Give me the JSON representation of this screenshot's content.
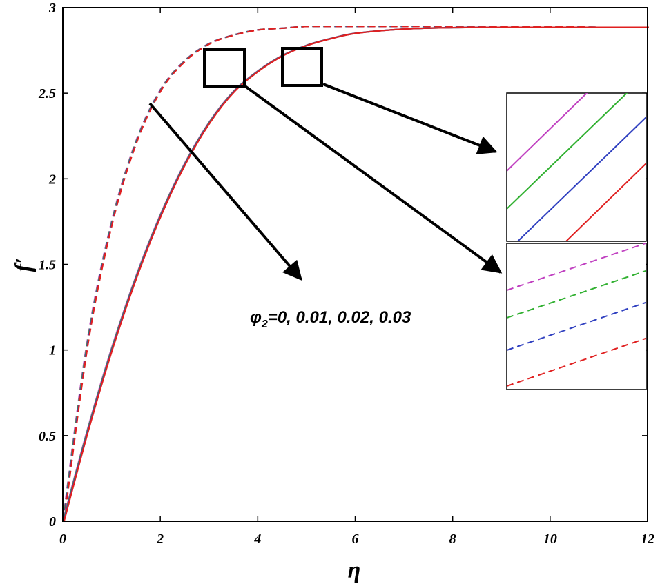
{
  "chart_data": {
    "type": "line",
    "title": "",
    "xlabel": "η",
    "ylabel": "f′",
    "xlim": [
      0,
      12
    ],
    "ylim": [
      0,
      3
    ],
    "xticks": [
      "0",
      "2",
      "4",
      "6",
      "8",
      "10",
      "12"
    ],
    "yticks": [
      "0",
      "0.5",
      "1",
      "1.5",
      "2",
      "2.5",
      "3"
    ],
    "grid": false,
    "annotation": {
      "symbol": "φ",
      "subscript": "2",
      "text": "=0, 0.01, 0.02, 0.03"
    },
    "x": [
      0,
      0.5,
      1,
      1.5,
      2,
      2.5,
      3,
      3.5,
      4,
      4.5,
      5,
      5.5,
      6,
      7,
      8,
      9,
      10,
      11,
      12
    ],
    "series": [
      {
        "style": "dashed",
        "values": [
          0,
          1.05,
          1.75,
          2.22,
          2.52,
          2.69,
          2.79,
          2.84,
          2.87,
          2.88,
          2.89,
          2.89,
          2.89,
          2.89,
          2.89,
          2.89,
          2.89,
          2.885,
          2.885
        ],
        "colors": [
          "#c040c0",
          "#30b030",
          "#3040c0",
          "#e02020"
        ]
      },
      {
        "style": "solid",
        "values": [
          0,
          0.53,
          1.01,
          1.43,
          1.79,
          2.09,
          2.33,
          2.51,
          2.63,
          2.72,
          2.78,
          2.82,
          2.85,
          2.875,
          2.883,
          2.885,
          2.885,
          2.885,
          2.885
        ],
        "colors": [
          "#c040c0",
          "#30b030",
          "#3040c0",
          "#e02020"
        ]
      }
    ],
    "zoom_boxes": [
      "dashed-curves-zoom",
      "solid-curves-zoom"
    ],
    "insets": [
      {
        "shows": "solid",
        "colors": [
          "#c040c0",
          "#30b030",
          "#3040c0",
          "#e02020"
        ]
      },
      {
        "shows": "dashed",
        "colors": [
          "#c040c0",
          "#30b030",
          "#3040c0",
          "#e02020"
        ]
      }
    ]
  }
}
